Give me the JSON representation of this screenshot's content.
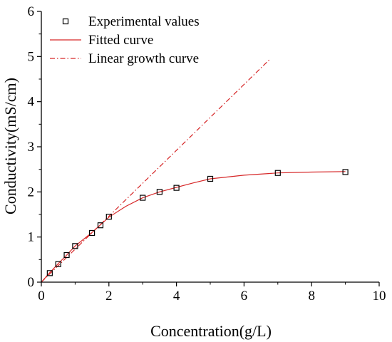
{
  "chart_data": {
    "type": "scatter",
    "xlabel": "Concentration(g/L)",
    "ylabel": "Conductivity(mS/cm)",
    "xlim": [
      0,
      10
    ],
    "ylim": [
      0,
      6
    ],
    "xticks": [
      "0",
      "2",
      "4",
      "6",
      "8",
      "10"
    ],
    "yticks": [
      "0",
      "1",
      "2",
      "3",
      "4",
      "5",
      "6"
    ],
    "grid": false,
    "legend_position": "top-left",
    "series": [
      {
        "name": "Experimental values",
        "kind": "markers",
        "marker": "open-square",
        "color": "#000000",
        "x": [
          0.25,
          0.5,
          0.75,
          1.0,
          1.5,
          1.75,
          2.0,
          3.0,
          3.5,
          4.0,
          5.0,
          7.0,
          9.0
        ],
        "y": [
          0.2,
          0.4,
          0.6,
          0.8,
          1.09,
          1.26,
          1.45,
          1.87,
          2.0,
          2.09,
          2.29,
          2.42,
          2.44
        ]
      },
      {
        "name": "Fitted curve",
        "kind": "line",
        "style": "solid",
        "color": "#d62728",
        "x": [
          0,
          0.25,
          0.5,
          0.75,
          1.0,
          1.5,
          1.75,
          2.0,
          2.5,
          3.0,
          3.5,
          4.0,
          4.5,
          5.0,
          6.0,
          7.0,
          8.0,
          9.0
        ],
        "y": [
          0,
          0.21,
          0.41,
          0.6,
          0.8,
          1.1,
          1.27,
          1.44,
          1.68,
          1.87,
          2.0,
          2.1,
          2.2,
          2.29,
          2.37,
          2.42,
          2.44,
          2.45
        ]
      },
      {
        "name": "Linear growth curve",
        "kind": "line",
        "style": "dash-dot",
        "color": "#d62728",
        "x": [
          0,
          6.75
        ],
        "y": [
          0,
          4.93
        ]
      }
    ]
  }
}
